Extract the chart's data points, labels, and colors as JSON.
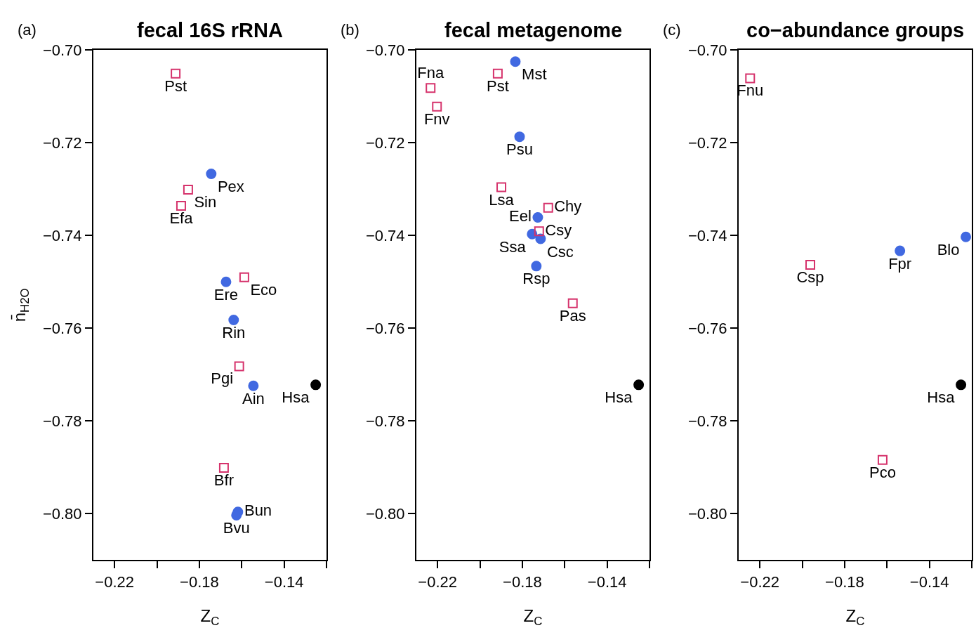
{
  "chart_data": [
    {
      "type": "scatter",
      "title": "fecal 16S rRNA",
      "xlabel": "Z$_{C}$",
      "ylabel": "n̄$_{H2O}$",
      "annotations": [
        "(a)"
      ],
      "xlim": [
        -0.23,
        -0.12
      ],
      "ylim": [
        -0.81,
        -0.7
      ],
      "xticks": [
        {
          "value": -0.22,
          "label": "−0.22"
        },
        {
          "value": -0.2,
          "label": null
        },
        {
          "value": -0.18,
          "label": "−0.18"
        },
        {
          "value": -0.16,
          "label": null
        },
        {
          "value": -0.14,
          "label": "−0.14"
        },
        {
          "value": -0.12,
          "label": null
        }
      ],
      "yticks": [
        {
          "value": -0.7,
          "label": "−0.70"
        },
        {
          "value": -0.72,
          "label": "−0.72"
        },
        {
          "value": -0.74,
          "label": "−0.74"
        },
        {
          "value": -0.76,
          "label": "−0.76"
        },
        {
          "value": -0.78,
          "label": "−0.78"
        },
        {
          "value": -0.8,
          "label": "−0.80"
        }
      ],
      "series": [
        {
          "color": "#4169e1",
          "marker": "circle",
          "x": [
            -0.1744,
            -0.1674,
            -0.1638,
            -0.1545,
            -0.1618,
            -0.1625
          ],
          "values": [
            -0.7267,
            -0.75,
            -0.7582,
            -0.7724,
            -0.7996,
            -0.8003
          ],
          "value_labels": [
            "Pex",
            "Ere",
            "Rin",
            "Ain",
            "Bun",
            "Bvu"
          ]
        },
        {
          "color": "#d6336c",
          "marker": "square",
          "x": [
            -0.1912,
            -0.1853,
            -0.1886,
            -0.1588,
            -0.1612,
            -0.1684
          ],
          "values": [
            -0.7051,
            -0.7301,
            -0.7336,
            -0.749,
            -0.7682,
            -0.7901
          ],
          "value_labels": [
            "Pst",
            "Sin",
            "Efa",
            "Eco",
            "Pgi",
            "Bfr"
          ]
        },
        {
          "color": "#000000",
          "marker": "circle",
          "x": [
            -0.1251
          ],
          "values": [
            -0.7722
          ],
          "value_labels": [
            "Hsa"
          ]
        }
      ]
    },
    {
      "type": "scatter",
      "title": "fecal metagenome",
      "xlabel": "Z$_{C}$",
      "annotations": [
        "(b)"
      ],
      "xlim": [
        -0.23,
        -0.12
      ],
      "ylim": [
        -0.81,
        -0.7
      ],
      "xticks": [
        {
          "value": -0.22,
          "label": "−0.22"
        },
        {
          "value": -0.2,
          "label": null
        },
        {
          "value": -0.18,
          "label": "−0.18"
        },
        {
          "value": -0.16,
          "label": null
        },
        {
          "value": -0.14,
          "label": "−0.14"
        },
        {
          "value": -0.12,
          "label": null
        }
      ],
      "yticks": [
        {
          "value": -0.7,
          "label": "−0.70"
        },
        {
          "value": -0.72,
          "label": "−0.72"
        },
        {
          "value": -0.74,
          "label": "−0.74"
        },
        {
          "value": -0.76,
          "label": "−0.76"
        },
        {
          "value": -0.78,
          "label": "−0.78"
        },
        {
          "value": -0.8,
          "label": "−0.80"
        }
      ],
      "series": [
        {
          "color": "#4169e1",
          "marker": "circle",
          "x": [
            -0.1833,
            -0.1813,
            -0.1727,
            -0.1754,
            -0.1714,
            -0.1734
          ],
          "values": [
            -0.7025,
            -0.7187,
            -0.7361,
            -0.7397,
            -0.7407,
            -0.7466
          ],
          "value_labels": [
            "Mst",
            "Psu",
            "Eel",
            "Ssa",
            "Csc",
            "Rsp"
          ]
        },
        {
          "color": "#d6336c",
          "marker": "square",
          "x": [
            -0.1916,
            -0.2233,
            -0.2203,
            -0.1899,
            -0.1678,
            -0.1721,
            -0.1562
          ],
          "values": [
            -0.7051,
            -0.7082,
            -0.7122,
            -0.7296,
            -0.734,
            -0.7391,
            -0.7546
          ],
          "value_labels": [
            "Pst",
            "Fna",
            "Fnv",
            "Lsa",
            "Chy",
            "Csy",
            "Pas"
          ]
        },
        {
          "color": "#000000",
          "marker": "circle",
          "x": [
            -0.1251
          ],
          "values": [
            -0.7722
          ],
          "value_labels": [
            "Hsa"
          ]
        }
      ]
    },
    {
      "type": "scatter",
      "title": "co−abundance groups",
      "xlabel": "Z$_{C}$",
      "annotations": [
        "(c)"
      ],
      "xlim": [
        -0.23,
        -0.12
      ],
      "ylim": [
        -0.81,
        -0.7
      ],
      "xticks": [
        {
          "value": -0.22,
          "label": "−0.22"
        },
        {
          "value": -0.2,
          "label": null
        },
        {
          "value": -0.18,
          "label": "−0.18"
        },
        {
          "value": -0.16,
          "label": null
        },
        {
          "value": -0.14,
          "label": "−0.14"
        },
        {
          "value": -0.12,
          "label": null
        }
      ],
      "yticks": [
        {
          "value": -0.7,
          "label": "−0.70"
        },
        {
          "value": -0.72,
          "label": "−0.72"
        },
        {
          "value": -0.74,
          "label": "−0.74"
        },
        {
          "value": -0.76,
          "label": "−0.76"
        },
        {
          "value": -0.78,
          "label": "−0.78"
        },
        {
          "value": -0.8,
          "label": "−0.80"
        }
      ],
      "series": [
        {
          "color": "#4169e1",
          "marker": "circle",
          "x": [
            -0.1539,
            -0.1228
          ],
          "values": [
            -0.7433,
            -0.7403
          ],
          "value_labels": [
            "Fpr",
            "Blo"
          ]
        },
        {
          "color": "#d6336c",
          "marker": "square",
          "x": [
            -0.2246,
            -0.1962,
            -0.1621
          ],
          "values": [
            -0.7061,
            -0.7463,
            -0.7884
          ],
          "value_labels": [
            "Fnu",
            "Csp",
            "Pco"
          ]
        },
        {
          "color": "#000000",
          "marker": "circle",
          "x": [
            -0.1251
          ],
          "values": [
            -0.7722
          ],
          "value_labels": [
            "Hsa"
          ]
        }
      ]
    }
  ]
}
